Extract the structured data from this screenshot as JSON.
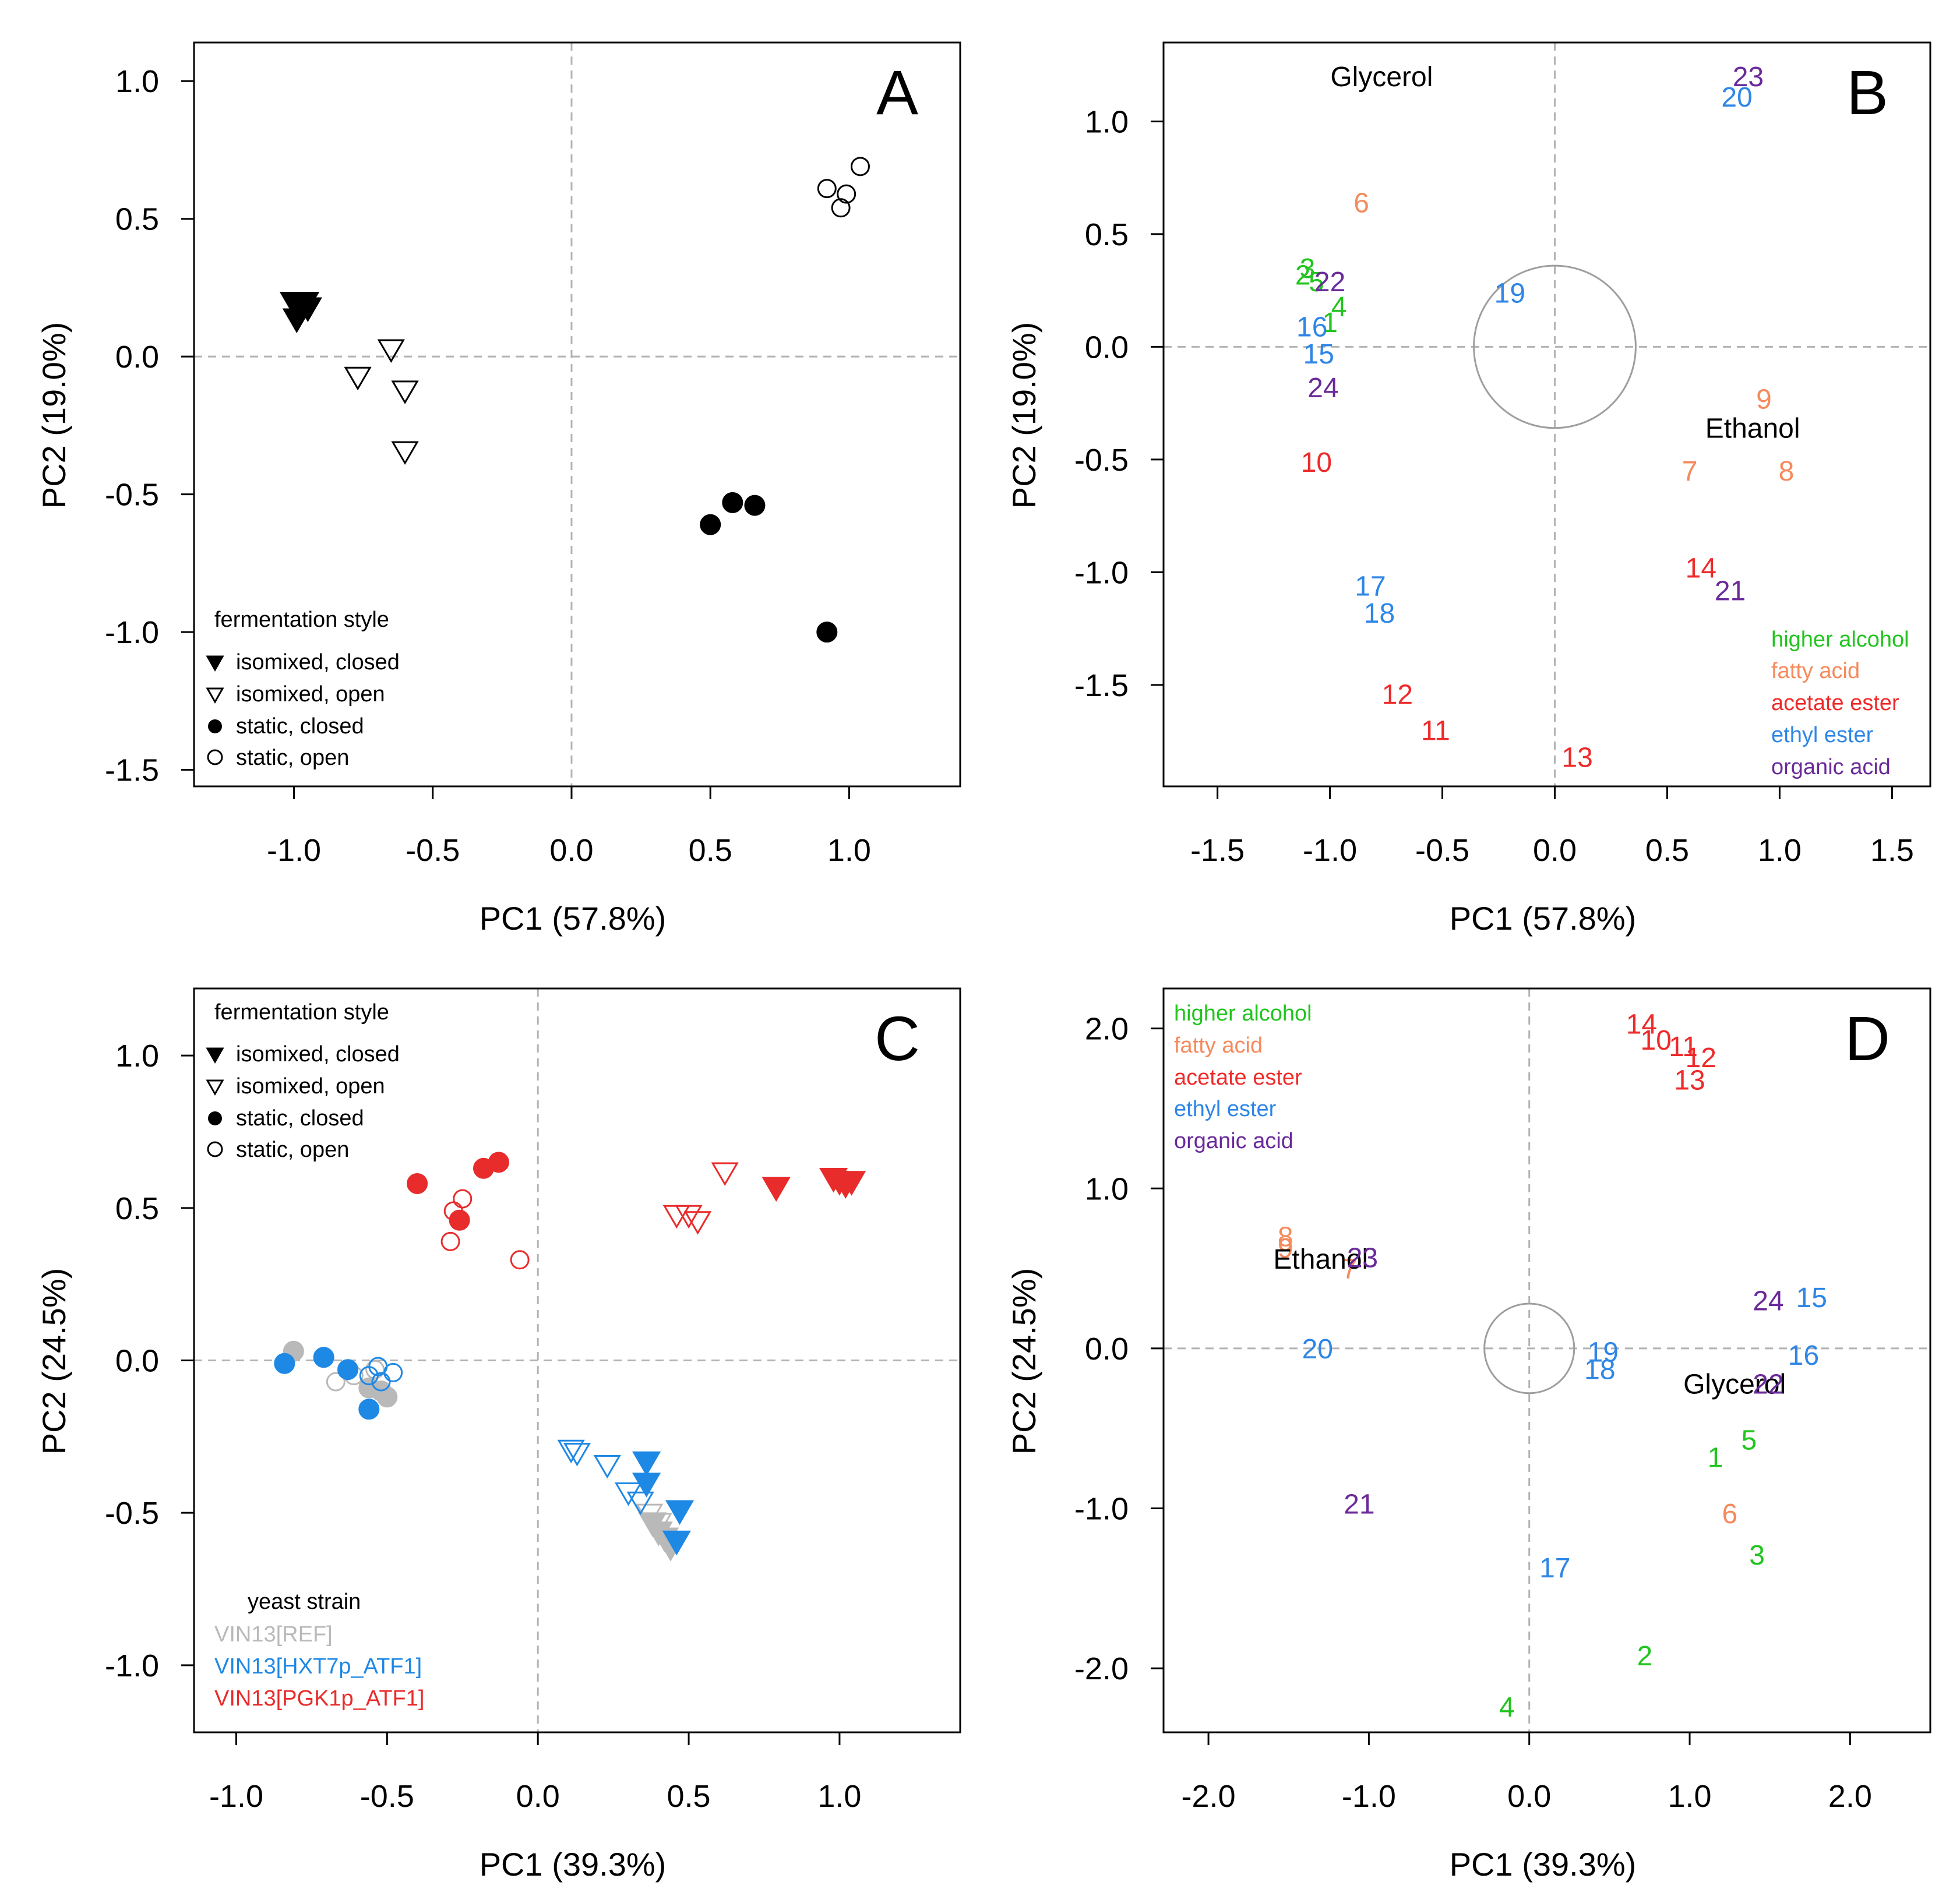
{
  "colors": {
    "higher_alcohol": "#22c41e",
    "fatty_acid": "#f58a5c",
    "acetate_ester": "#ee2a2a",
    "ethyl_ester": "#2e86e6",
    "organic_acid": "#6a2a9a",
    "ref_strain": "#b9b9b9",
    "hxt7_strain": "#1e88e5",
    "pgk1_strain": "#e82b2b",
    "black": "#000000",
    "ref_line": "#b3b3b3"
  },
  "chart_data": [
    {
      "panel": "A",
      "type": "scatter",
      "panel_label": "A",
      "xlabel": "PC1 (57.8%)",
      "ylabel": "PC2 (19.0%)",
      "xlim": [
        -1.36,
        1.4
      ],
      "ylim": [
        -1.56,
        1.14
      ],
      "xticks": [
        -1.0,
        -0.5,
        0.0,
        0.5,
        1.0
      ],
      "xtick_labels": [
        "-1.0",
        "-0.5",
        "0.0",
        "0.5",
        "1.0"
      ],
      "yticks": [
        1.0,
        0.5,
        0.0,
        -0.5,
        -1.0,
        -1.5
      ],
      "ytick_labels": [
        "1.0",
        "0.5",
        "0.0",
        "-0.5",
        "-1.0",
        "-1.5"
      ],
      "legend": {
        "position": "bottom-left",
        "title": "fermentation style",
        "entries": [
          {
            "label": "isomixed, closed",
            "marker": "triangle-filled"
          },
          {
            "label": "isomixed, open",
            "marker": "triangle-open"
          },
          {
            "label": "static, closed",
            "marker": "circle-filled"
          },
          {
            "label": "static, open",
            "marker": "circle-open"
          }
        ]
      },
      "series": [
        {
          "name": "isomixed, closed",
          "marker": "triangle-filled",
          "color": "#000000",
          "points": [
            [
              -1.0,
              0.2
            ],
            [
              -0.98,
              0.19
            ],
            [
              -0.96,
              0.2
            ],
            [
              -0.99,
              0.14
            ],
            [
              -0.95,
              0.18
            ]
          ]
        },
        {
          "name": "isomixed, open",
          "marker": "triangle-open",
          "color": "#000000",
          "points": [
            [
              -0.65,
              0.03
            ],
            [
              -0.77,
              -0.07
            ],
            [
              -0.6,
              -0.12
            ],
            [
              -0.6,
              -0.34
            ]
          ]
        },
        {
          "name": "static, closed",
          "marker": "circle-filled",
          "color": "#000000",
          "points": [
            [
              0.5,
              -0.61
            ],
            [
              0.58,
              -0.53
            ],
            [
              0.66,
              -0.54
            ],
            [
              0.92,
              -1.0
            ]
          ]
        },
        {
          "name": "static, open",
          "marker": "circle-open",
          "color": "#000000",
          "points": [
            [
              0.92,
              0.61
            ],
            [
              0.99,
              0.59
            ],
            [
              1.04,
              0.69
            ],
            [
              0.97,
              0.54
            ]
          ]
        }
      ]
    },
    {
      "panel": "B",
      "type": "biplot",
      "panel_label": "B",
      "xlabel": "PC1 (57.8%)",
      "ylabel": "PC2 (19.0%)",
      "xlim": [
        -1.74,
        1.67
      ],
      "ylim": [
        -1.95,
        1.35
      ],
      "xticks": [
        -1.5,
        -1.0,
        -0.5,
        0.0,
        0.5,
        1.0,
        1.5
      ],
      "xtick_labels": [
        "-1.5",
        "-1.0",
        "-0.5",
        "0.0",
        "0.5",
        "1.0",
        "1.5"
      ],
      "yticks": [
        1.0,
        0.5,
        0.0,
        -0.5,
        -1.0,
        -1.5
      ],
      "ytick_labels": [
        "1.0",
        "0.5",
        "0.0",
        "-0.5",
        "-1.0",
        "-1.5"
      ],
      "circle_radius": 0.36,
      "legend": {
        "position": "bottom-right",
        "entries": [
          {
            "label": "higher alcohol",
            "color": "#22c41e"
          },
          {
            "label": "fatty acid",
            "color": "#f58a5c"
          },
          {
            "label": "acetate ester",
            "color": "#ee2a2a"
          },
          {
            "label": "ethyl ester",
            "color": "#2e86e6"
          },
          {
            "label": "organic acid",
            "color": "#6a2a9a"
          }
        ]
      },
      "variables": [
        {
          "label": "Glycerol",
          "x": -0.77,
          "y": 1.2,
          "group": "other"
        },
        {
          "label": "Ethanol",
          "x": 0.88,
          "y": -0.36,
          "group": "other"
        },
        {
          "label": "23",
          "x": 0.86,
          "y": 1.2,
          "group": "organic acid"
        },
        {
          "label": "20",
          "x": 0.81,
          "y": 1.11,
          "group": "ethyl ester"
        },
        {
          "label": "6",
          "x": -0.86,
          "y": 0.64,
          "group": "fatty acid"
        },
        {
          "label": "3",
          "x": -1.1,
          "y": 0.35,
          "group": "higher alcohol"
        },
        {
          "label": "2",
          "x": -1.12,
          "y": 0.32,
          "group": "higher alcohol"
        },
        {
          "label": "5",
          "x": -1.06,
          "y": 0.29,
          "group": "higher alcohol"
        },
        {
          "label": "22",
          "x": -1.0,
          "y": 0.29,
          "group": "organic acid"
        },
        {
          "label": "4",
          "x": -0.96,
          "y": 0.18,
          "group": "higher alcohol"
        },
        {
          "label": "1",
          "x": -1.0,
          "y": 0.11,
          "group": "higher alcohol"
        },
        {
          "label": "16",
          "x": -1.08,
          "y": 0.09,
          "group": "ethyl ester"
        },
        {
          "label": "15",
          "x": -1.05,
          "y": -0.03,
          "group": "ethyl ester"
        },
        {
          "label": "19",
          "x": -0.2,
          "y": 0.24,
          "group": "ethyl ester"
        },
        {
          "label": "24",
          "x": -1.03,
          "y": -0.18,
          "group": "organic acid"
        },
        {
          "label": "9",
          "x": 0.93,
          "y": -0.23,
          "group": "fatty acid"
        },
        {
          "label": "10",
          "x": -1.06,
          "y": -0.51,
          "group": "acetate ester"
        },
        {
          "label": "7",
          "x": 0.6,
          "y": -0.55,
          "group": "fatty acid"
        },
        {
          "label": "8",
          "x": 1.03,
          "y": -0.55,
          "group": "fatty acid"
        },
        {
          "label": "14",
          "x": 0.65,
          "y": -0.98,
          "group": "acetate ester"
        },
        {
          "label": "21",
          "x": 0.78,
          "y": -1.08,
          "group": "organic acid"
        },
        {
          "label": "17",
          "x": -0.82,
          "y": -1.06,
          "group": "ethyl ester"
        },
        {
          "label": "18",
          "x": -0.78,
          "y": -1.18,
          "group": "ethyl ester"
        },
        {
          "label": "12",
          "x": -0.7,
          "y": -1.54,
          "group": "acetate ester"
        },
        {
          "label": "11",
          "x": -0.53,
          "y": -1.7,
          "group": "acetate ester"
        },
        {
          "label": "13",
          "x": 0.1,
          "y": -1.82,
          "group": "acetate ester"
        }
      ]
    },
    {
      "panel": "C",
      "type": "scatter",
      "panel_label": "C",
      "xlabel": "PC1 (39.3%)",
      "ylabel": "PC2 (24.5%)",
      "xlim": [
        -1.14,
        1.4
      ],
      "ylim": [
        -1.22,
        1.22
      ],
      "xticks": [
        -1.0,
        -0.5,
        0.0,
        0.5,
        1.0
      ],
      "xtick_labels": [
        "-1.0",
        "-0.5",
        "0.0",
        "0.5",
        "1.0"
      ],
      "yticks": [
        1.0,
        0.5,
        0.0,
        -0.5,
        -1.0
      ],
      "ytick_labels": [
        "1.0",
        "0.5",
        "0.0",
        "-0.5",
        "-1.0"
      ],
      "legend": {
        "position": "top-left",
        "title": "fermentation style",
        "entries": [
          {
            "label": "isomixed, closed",
            "marker": "triangle-filled"
          },
          {
            "label": "isomixed, open",
            "marker": "triangle-open"
          },
          {
            "label": "static, closed",
            "marker": "circle-filled"
          },
          {
            "label": "static, open",
            "marker": "circle-open"
          }
        ]
      },
      "legend2": {
        "position": "bottom-left",
        "title": "yeast strain",
        "entries": [
          {
            "label": "VIN13[REF]",
            "color": "#b9b9b9"
          },
          {
            "label": "VIN13[HXT7p_ATF1]",
            "color": "#1e88e5"
          },
          {
            "label": "VIN13[PGK1p_ATF1]",
            "color": "#e82b2b"
          }
        ]
      },
      "series": [
        {
          "name": "VIN13[PGK1p_ATF1] static, closed",
          "marker": "circle-filled",
          "color": "#e82b2b",
          "points": [
            [
              -0.4,
              0.58
            ],
            [
              -0.18,
              0.63
            ],
            [
              -0.13,
              0.65
            ],
            [
              -0.26,
              0.46
            ]
          ]
        },
        {
          "name": "VIN13[PGK1p_ATF1] static, open",
          "marker": "circle-open",
          "color": "#e82b2b",
          "points": [
            [
              -0.25,
              0.53
            ],
            [
              -0.28,
              0.49
            ],
            [
              -0.29,
              0.39
            ],
            [
              -0.06,
              0.33
            ]
          ]
        },
        {
          "name": "VIN13[PGK1p_ATF1] isomixed, closed",
          "marker": "triangle-filled",
          "color": "#e82b2b",
          "points": [
            [
              0.79,
              0.57
            ],
            [
              0.98,
              0.6
            ],
            [
              1.0,
              0.59
            ],
            [
              1.02,
              0.58
            ],
            [
              1.04,
              0.59
            ]
          ]
        },
        {
          "name": "VIN13[PGK1p_ATF1] isomixed, open",
          "marker": "triangle-open",
          "color": "#e82b2b",
          "points": [
            [
              0.62,
              0.62
            ],
            [
              0.46,
              0.48
            ],
            [
              0.5,
              0.48
            ],
            [
              0.53,
              0.46
            ]
          ]
        },
        {
          "name": "VIN13[REF] static, closed",
          "marker": "circle-filled",
          "color": "#b9b9b9",
          "points": [
            [
              -0.81,
              0.03
            ],
            [
              -0.56,
              -0.09
            ],
            [
              -0.52,
              -0.1
            ],
            [
              -0.5,
              -0.12
            ]
          ]
        },
        {
          "name": "VIN13[REF] static, open",
          "marker": "circle-open",
          "color": "#b9b9b9",
          "points": [
            [
              -0.67,
              -0.07
            ],
            [
              -0.54,
              -0.03
            ],
            [
              -0.61,
              -0.05
            ]
          ]
        },
        {
          "name": "VIN13[REF] isomixed, closed",
          "marker": "triangle-filled",
          "color": "#b9b9b9",
          "points": [
            [
              0.38,
              -0.53
            ],
            [
              0.4,
              -0.56
            ],
            [
              0.42,
              -0.58
            ],
            [
              0.44,
              -0.61
            ]
          ]
        },
        {
          "name": "VIN13[REF] isomixed, open",
          "marker": "triangle-open",
          "color": "#b9b9b9",
          "points": [
            [
              0.37,
              -0.5
            ],
            [
              0.4,
              -0.53
            ]
          ]
        },
        {
          "name": "VIN13[HXT7p_ATF1] static, closed",
          "marker": "circle-filled",
          "color": "#1e88e5",
          "points": [
            [
              -0.84,
              -0.01
            ],
            [
              -0.71,
              0.01
            ],
            [
              -0.63,
              -0.03
            ],
            [
              -0.56,
              -0.16
            ]
          ]
        },
        {
          "name": "VIN13[HXT7p_ATF1] static, open",
          "marker": "circle-open",
          "color": "#1e88e5",
          "points": [
            [
              -0.53,
              -0.02
            ],
            [
              -0.48,
              -0.04
            ],
            [
              -0.56,
              -0.05
            ],
            [
              -0.52,
              -0.07
            ]
          ]
        },
        {
          "name": "VIN13[HXT7p_ATF1] isomixed, closed",
          "marker": "triangle-filled",
          "color": "#1e88e5",
          "points": [
            [
              0.36,
              -0.33
            ],
            [
              0.36,
              -0.4
            ],
            [
              0.47,
              -0.49
            ],
            [
              0.46,
              -0.59
            ]
          ]
        },
        {
          "name": "VIN13[HXT7p_ATF1] isomixed, open",
          "marker": "triangle-open",
          "color": "#1e88e5",
          "points": [
            [
              0.11,
              -0.29
            ],
            [
              0.13,
              -0.3
            ],
            [
              0.23,
              -0.34
            ],
            [
              0.3,
              -0.43
            ],
            [
              0.34,
              -0.46
            ]
          ]
        }
      ]
    },
    {
      "panel": "D",
      "type": "biplot",
      "panel_label": "D",
      "xlabel": "PC1 (39.3%)",
      "ylabel": "PC2 (24.5%)",
      "xlim": [
        -2.28,
        2.5
      ],
      "ylim": [
        -2.4,
        2.25
      ],
      "xticks": [
        -2.0,
        -1.0,
        0.0,
        1.0,
        2.0
      ],
      "xtick_labels": [
        "-2.0",
        "-1.0",
        "0.0",
        "1.0",
        "2.0"
      ],
      "yticks": [
        2.0,
        1.0,
        0.0,
        -1.0,
        -2.0
      ],
      "ytick_labels": [
        "2.0",
        "1.0",
        "0.0",
        "-1.0",
        "-2.0"
      ],
      "circle_radius": 0.28,
      "legend": {
        "position": "top-left",
        "entries": [
          {
            "label": "higher alcohol",
            "color": "#22c41e"
          },
          {
            "label": "fatty acid",
            "color": "#f58a5c"
          },
          {
            "label": "acetate ester",
            "color": "#ee2a2a"
          },
          {
            "label": "ethyl ester",
            "color": "#2e86e6"
          },
          {
            "label": "organic acid",
            "color": "#6a2a9a"
          }
        ]
      },
      "variables": [
        {
          "label": "14",
          "x": 0.7,
          "y": 2.03,
          "group": "acetate ester"
        },
        {
          "label": "10",
          "x": 0.79,
          "y": 1.93,
          "group": "acetate ester"
        },
        {
          "label": "11",
          "x": 0.96,
          "y": 1.89,
          "group": "acetate ester"
        },
        {
          "label": "12",
          "x": 1.07,
          "y": 1.82,
          "group": "acetate ester"
        },
        {
          "label": "13",
          "x": 1.0,
          "y": 1.68,
          "group": "acetate ester"
        },
        {
          "label": "8",
          "x": -1.52,
          "y": 0.7,
          "group": "fatty acid"
        },
        {
          "label": "9",
          "x": -1.52,
          "y": 0.63,
          "group": "fatty acid"
        },
        {
          "label": "7",
          "x": -1.12,
          "y": 0.5,
          "group": "fatty acid"
        },
        {
          "label": "Ethanol",
          "x": -1.3,
          "y": 0.56,
          "group": "other"
        },
        {
          "label": "23",
          "x": -1.04,
          "y": 0.57,
          "group": "organic acid"
        },
        {
          "label": "20",
          "x": -1.32,
          "y": 0.0,
          "group": "ethyl ester"
        },
        {
          "label": "19",
          "x": 0.46,
          "y": -0.02,
          "group": "ethyl ester"
        },
        {
          "label": "18",
          "x": 0.44,
          "y": -0.13,
          "group": "ethyl ester"
        },
        {
          "label": "24",
          "x": 1.49,
          "y": 0.3,
          "group": "organic acid"
        },
        {
          "label": "15",
          "x": 1.76,
          "y": 0.32,
          "group": "ethyl ester"
        },
        {
          "label": "16",
          "x": 1.71,
          "y": -0.04,
          "group": "ethyl ester"
        },
        {
          "label": "Glycerol",
          "x": 1.28,
          "y": -0.22,
          "group": "other"
        },
        {
          "label": "22",
          "x": 1.49,
          "y": -0.22,
          "group": "organic acid"
        },
        {
          "label": "5",
          "x": 1.37,
          "y": -0.57,
          "group": "higher alcohol"
        },
        {
          "label": "1",
          "x": 1.16,
          "y": -0.68,
          "group": "higher alcohol"
        },
        {
          "label": "21",
          "x": -1.06,
          "y": -0.97,
          "group": "organic acid"
        },
        {
          "label": "6",
          "x": 1.25,
          "y": -1.03,
          "group": "fatty acid"
        },
        {
          "label": "3",
          "x": 1.42,
          "y": -1.29,
          "group": "higher alcohol"
        },
        {
          "label": "17",
          "x": 0.16,
          "y": -1.37,
          "group": "ethyl ester"
        },
        {
          "label": "2",
          "x": 0.72,
          "y": -1.92,
          "group": "higher alcohol"
        },
        {
          "label": "4",
          "x": -0.14,
          "y": -2.24,
          "group": "higher alcohol"
        }
      ]
    }
  ]
}
